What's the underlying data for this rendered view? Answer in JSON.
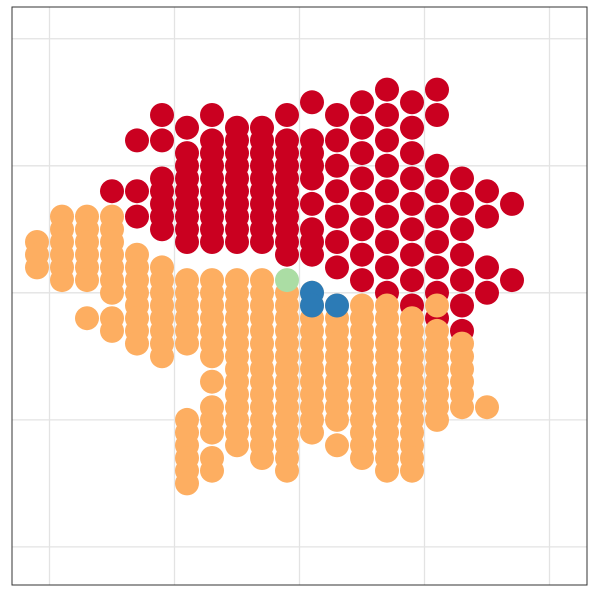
{
  "chart_data": {
    "type": "scatter",
    "title": "",
    "xlabel": "",
    "ylabel": "",
    "xlim": [
      0,
      23
    ],
    "ylim": [
      0,
      22.75
    ],
    "grid": true,
    "legend": "none",
    "groups": [
      {
        "color": "#ca0020",
        "rows": [
          {
            "y": 19.5,
            "x": [
              15.0,
              17.0
            ]
          },
          {
            "y": 19.0,
            "x": [
              12.0,
              14.0,
              16.0
            ]
          },
          {
            "y": 18.5,
            "x": [
              6.0,
              8.0,
              11.0,
              13.0,
              15.0,
              17.0
            ]
          },
          {
            "y": 18.0,
            "x": [
              7.0,
              9.0,
              10.0,
              14.0,
              16.0
            ]
          },
          {
            "y": 17.5,
            "x": [
              5.0,
              6.0,
              8.0,
              9.0,
              10.0,
              11.0,
              12.0,
              13.0,
              15.0
            ]
          },
          {
            "y": 17.0,
            "x": [
              7.0,
              8.0,
              9.0,
              10.0,
              11.0,
              12.0,
              14.0,
              16.0
            ]
          },
          {
            "y": 16.5,
            "x": [
              7.0,
              8.0,
              9.0,
              10.0,
              11.0,
              12.0,
              13.0,
              15.0,
              17.0
            ]
          },
          {
            "y": 16.0,
            "x": [
              6.0,
              7.0,
              8.0,
              9.0,
              10.0,
              11.0,
              12.0,
              14.0,
              16.0,
              18.0
            ]
          },
          {
            "y": 15.5,
            "x": [
              4.0,
              5.0,
              6.0,
              7.0,
              8.0,
              9.0,
              10.0,
              11.0,
              13.0,
              15.0,
              17.0,
              19.0
            ]
          },
          {
            "y": 15.0,
            "x": [
              6.0,
              7.0,
              8.0,
              9.0,
              10.0,
              11.0,
              12.0,
              14.0,
              16.0,
              18.0,
              20.0
            ]
          },
          {
            "y": 14.5,
            "x": [
              5.0,
              6.0,
              7.0,
              8.0,
              9.0,
              10.0,
              11.0,
              13.0,
              15.0,
              17.0,
              19.0
            ]
          },
          {
            "y": 14.0,
            "x": [
              6.0,
              7.0,
              8.0,
              9.0,
              10.0,
              11.0,
              12.0,
              14.0,
              16.0,
              18.0
            ]
          },
          {
            "y": 13.5,
            "x": [
              7.0,
              8.0,
              9.0,
              10.0,
              11.0,
              12.0,
              13.0,
              15.0,
              17.0
            ]
          },
          {
            "y": 13.0,
            "x": [
              11.0,
              12.0,
              14.0,
              16.0,
              18.0
            ]
          },
          {
            "y": 12.5,
            "x": [
              13.0,
              15.0,
              17.0,
              19.0
            ]
          },
          {
            "y": 12.0,
            "x": [
              14.0,
              16.0,
              18.0,
              20.0
            ]
          },
          {
            "y": 11.5,
            "x": [
              15.0,
              17.0,
              19.0
            ]
          },
          {
            "y": 11.0,
            "x": [
              16.0,
              18.0
            ]
          },
          {
            "y": 10.5,
            "x": [
              17.0
            ]
          },
          {
            "y": 10.0,
            "x": [
              18.0
            ]
          }
        ]
      },
      {
        "color": "#fdae61",
        "rows": [
          {
            "y": 14.5,
            "x": [
              2.0,
              3.0,
              4.0
            ]
          },
          {
            "y": 14.0,
            "x": [
              2.0,
              3.0,
              4.0
            ]
          },
          {
            "y": 13.5,
            "x": [
              1.0,
              2.0,
              3.0,
              4.0
            ]
          },
          {
            "y": 13.0,
            "x": [
              1.0,
              2.0,
              3.0,
              4.0,
              5.0
            ]
          },
          {
            "y": 12.5,
            "x": [
              1.0,
              2.0,
              3.0,
              4.0,
              5.0,
              6.0
            ]
          },
          {
            "y": 12.0,
            "x": [
              2.0,
              3.0,
              4.0,
              5.0,
              6.0,
              7.0,
              8.0,
              9.0,
              10.0
            ]
          },
          {
            "y": 11.5,
            "x": [
              4.0,
              5.0,
              6.0,
              7.0,
              8.0,
              9.0,
              10.0,
              11.0,
              12.0
            ]
          },
          {
            "y": 11.0,
            "x": [
              5.0,
              6.0,
              7.0,
              8.0,
              9.0,
              10.0,
              11.0,
              12.0,
              13.0,
              14.0,
              15.0,
              17.0
            ]
          },
          {
            "y": 10.5,
            "x": [
              3.0,
              4.0,
              5.0,
              6.0,
              7.0,
              8.0,
              9.0,
              10.0,
              11.0,
              12.0,
              13.0,
              14.0,
              15.0,
              16.0
            ]
          },
          {
            "y": 10.0,
            "x": [
              4.0,
              5.0,
              6.0,
              7.0,
              8.0,
              9.0,
              10.0,
              11.0,
              12.0,
              13.0,
              14.0,
              15.0,
              16.0,
              17.0
            ]
          },
          {
            "y": 9.5,
            "x": [
              5.0,
              6.0,
              7.0,
              8.0,
              9.0,
              10.0,
              11.0,
              12.0,
              13.0,
              14.0,
              15.0,
              16.0,
              17.0,
              18.0
            ]
          },
          {
            "y": 9.0,
            "x": [
              6.0,
              8.0,
              9.0,
              10.0,
              11.0,
              12.0,
              13.0,
              14.0,
              15.0,
              16.0,
              17.0,
              18.0
            ]
          },
          {
            "y": 8.5,
            "x": [
              9.0,
              10.0,
              11.0,
              12.0,
              13.0,
              14.0,
              15.0,
              16.0,
              17.0,
              18.0
            ]
          },
          {
            "y": 8.0,
            "x": [
              8.0,
              9.0,
              10.0,
              11.0,
              12.0,
              13.0,
              14.0,
              15.0,
              16.0,
              17.0,
              18.0
            ]
          },
          {
            "y": 7.5,
            "x": [
              9.0,
              10.0,
              11.0,
              12.0,
              13.0,
              14.0,
              15.0,
              16.0,
              17.0,
              18.0
            ]
          },
          {
            "y": 7.0,
            "x": [
              8.0,
              9.0,
              10.0,
              11.0,
              12.0,
              13.0,
              14.0,
              15.0,
              16.0,
              17.0,
              18.0,
              19.0
            ]
          },
          {
            "y": 6.5,
            "x": [
              7.0,
              8.0,
              9.0,
              10.0,
              11.0,
              12.0,
              13.0,
              14.0,
              15.0,
              16.0,
              17.0
            ]
          },
          {
            "y": 6.0,
            "x": [
              7.0,
              8.0,
              9.0,
              10.0,
              11.0,
              12.0,
              14.0,
              15.0,
              16.0
            ]
          },
          {
            "y": 5.5,
            "x": [
              7.0,
              9.0,
              10.0,
              11.0,
              13.0,
              14.0,
              15.0,
              16.0
            ]
          },
          {
            "y": 5.0,
            "x": [
              7.0,
              8.0,
              10.0,
              11.0,
              14.0,
              15.0,
              16.0
            ]
          },
          {
            "y": 4.5,
            "x": [
              7.0,
              8.0,
              11.0,
              15.0,
              16.0
            ]
          },
          {
            "y": 4.0,
            "x": [
              7.0
            ]
          }
        ]
      },
      {
        "color": "#abdda4",
        "rows": [
          {
            "y": 12.0,
            "x": [
              11.0
            ]
          }
        ]
      },
      {
        "color": "#2c7bb6",
        "rows": [
          {
            "y": 11.5,
            "x": [
              12.0
            ]
          },
          {
            "y": 11.0,
            "x": [
              12.0,
              13.0
            ]
          }
        ]
      }
    ]
  }
}
